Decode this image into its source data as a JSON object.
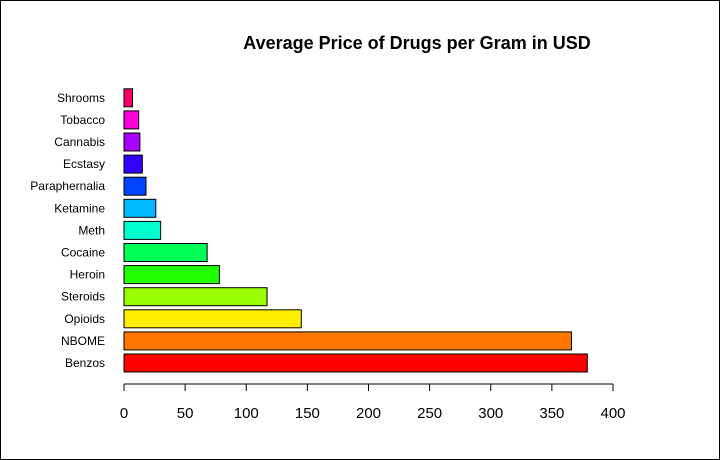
{
  "chart_data": {
    "type": "bar",
    "orientation": "horizontal",
    "title": "Average Price of Drugs per Gram in USD",
    "xlabel": "",
    "ylabel": "",
    "categories": [
      "Benzos",
      "NBOME",
      "Opioids",
      "Steroids",
      "Heroin",
      "Cocaine",
      "Meth",
      "Ketamine",
      "Paraphernalia",
      "Ecstasy",
      "Cannabis",
      "Tobacco",
      "Shrooms"
    ],
    "values": [
      379,
      366,
      145,
      117,
      78,
      68,
      30,
      26,
      18,
      15,
      13,
      12,
      7
    ],
    "colors": [
      "#FF0000",
      "#FF7700",
      "#FFEE00",
      "#99FF00",
      "#22FF00",
      "#00FF55",
      "#00FFCC",
      "#00BBFF",
      "#0044FF",
      "#3300FF",
      "#AA00FF",
      "#FF00DD",
      "#FF0066"
    ],
    "xlim": [
      0,
      400
    ],
    "xticks": [
      "0",
      "50",
      "100",
      "150",
      "200",
      "250",
      "300",
      "350",
      "400"
    ],
    "xtick_values": [
      0,
      50,
      100,
      150,
      200,
      250,
      300,
      350,
      400
    ],
    "grid": false,
    "legend": "none"
  }
}
